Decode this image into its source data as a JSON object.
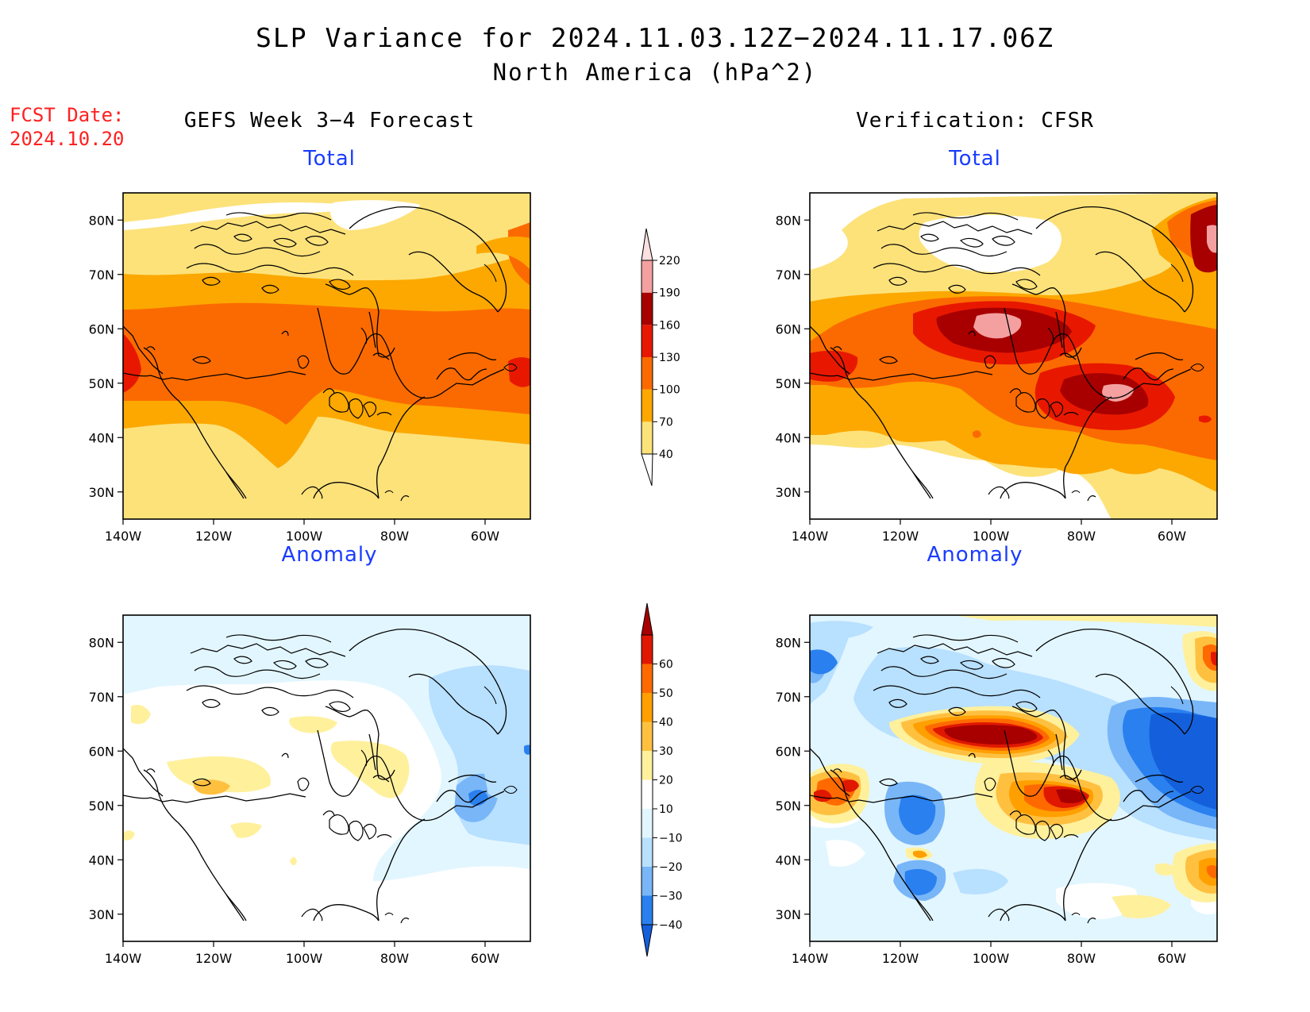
{
  "title": "SLP Variance for 2024.11.03.12Z−2024.11.17.06Z",
  "subtitle": "North America (hPa^2)",
  "fcst": {
    "line1": "FCST Date:",
    "line2": "2024.10.20"
  },
  "columns": {
    "left": "GEFS Week 3−4 Forecast",
    "right": "Verification: CFSR"
  },
  "panels": {
    "top_left": "Total",
    "top_right": "Total",
    "bottom_left": "Anomaly",
    "bottom_right": "Anomaly"
  },
  "axes": {
    "lon_labels": [
      "140W",
      "120W",
      "100W",
      "80W",
      "60W"
    ],
    "lat_labels": [
      "30N",
      "40N",
      "50N",
      "60N",
      "70N",
      "80N"
    ],
    "lon_range": [
      -140,
      -50
    ],
    "lat_range": [
      25,
      85
    ]
  },
  "colorbar_total": {
    "levels": [
      40,
      70,
      100,
      130,
      160,
      190,
      220
    ],
    "level_labels": [
      "40",
      "70",
      "100",
      "130",
      "160",
      "190",
      "220"
    ],
    "colors": [
      "#fde27a",
      "#fca800",
      "#fb6a00",
      "#e81800",
      "#a80000",
      "#f4a0a0",
      "#fbe0e0"
    ]
  },
  "colorbar_anomaly": {
    "levels": [
      -40,
      -30,
      -20,
      -10,
      10,
      20,
      30,
      40,
      50,
      60
    ],
    "level_labels": [
      "−40",
      "−30",
      "−20",
      "−10",
      "10",
      "20",
      "30",
      "40",
      "50",
      "60"
    ],
    "colors": [
      "#1460dc",
      "#2a80ef",
      "#78b6f8",
      "#b8e0ff",
      "#e2f6ff",
      "#ffffff",
      "#fff09c",
      "#ffc040",
      "#ffa000",
      "#ff6a00",
      "#e01800",
      "#a80000"
    ]
  }
}
